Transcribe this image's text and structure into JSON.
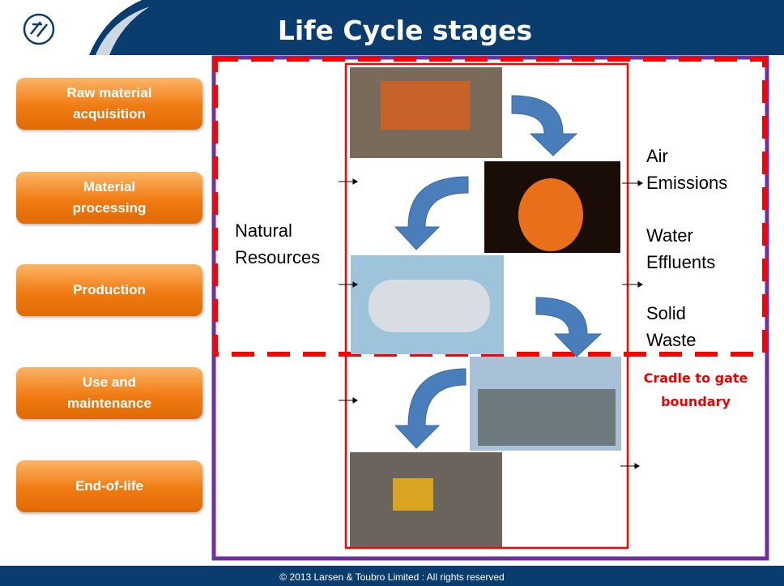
{
  "header": {
    "title": "Life Cycle stages"
  },
  "stages": [
    "Raw material acquisition",
    "Material processing",
    "Production",
    "Use and maintenance",
    "End-of-life"
  ],
  "inputs": "Natural Resources",
  "outputs": [
    "Air Emissions",
    "Water Effluents",
    "Solid Waste"
  ],
  "boundary_label": "Cradle to gate boundary",
  "footer": "© 2013 Larsen & Toubro Limited  : All rights reserved"
}
